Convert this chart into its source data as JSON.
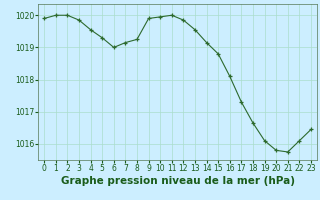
{
  "x": [
    0,
    1,
    2,
    3,
    4,
    5,
    6,
    7,
    8,
    9,
    10,
    11,
    12,
    13,
    14,
    15,
    16,
    17,
    18,
    19,
    20,
    21,
    22,
    23
  ],
  "y": [
    1019.9,
    1020.0,
    1020.0,
    1019.85,
    1019.55,
    1019.3,
    1019.0,
    1019.15,
    1019.25,
    1019.9,
    1019.95,
    1020.0,
    1019.85,
    1019.55,
    1019.15,
    1018.8,
    1018.1,
    1017.3,
    1016.65,
    1016.1,
    1015.8,
    1015.75,
    1016.1,
    1016.45
  ],
  "title": "Graphe pression niveau de la mer (hPa)",
  "ylim": [
    1015.5,
    1020.35
  ],
  "xlim": [
    -0.5,
    23.5
  ],
  "yticks": [
    1016,
    1017,
    1018,
    1019,
    1020
  ],
  "xticks": [
    0,
    1,
    2,
    3,
    4,
    5,
    6,
    7,
    8,
    9,
    10,
    11,
    12,
    13,
    14,
    15,
    16,
    17,
    18,
    19,
    20,
    21,
    22,
    23
  ],
  "line_color": "#2d6a2d",
  "bg_color": "#cceeff",
  "grid_color": "#aaddcc",
  "text_color": "#1a5c1a",
  "title_fontsize": 7.5,
  "tick_fontsize": 5.5
}
